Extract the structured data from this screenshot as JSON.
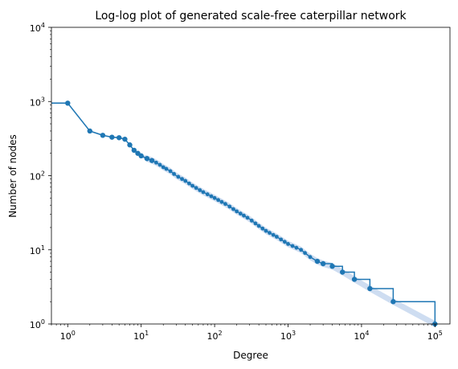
{
  "chart_data": {
    "type": "line",
    "title": "Log-log plot of generated scale-free caterpillar network",
    "xlabel": "Degree",
    "ylabel": "Number of nodes",
    "xscale": "log",
    "yscale": "log",
    "xlim": [
      0.6,
      160000
    ],
    "ylim": [
      1,
      10000
    ],
    "grid": false,
    "x_ticks": [
      {
        "base": "10",
        "exp": "0",
        "value": 1
      },
      {
        "base": "10",
        "exp": "1",
        "value": 10
      },
      {
        "base": "10",
        "exp": "2",
        "value": 100
      },
      {
        "base": "10",
        "exp": "3",
        "value": 1000
      },
      {
        "base": "10",
        "exp": "4",
        "value": 10000
      },
      {
        "base": "10",
        "exp": "5",
        "value": 100000
      }
    ],
    "y_ticks": [
      {
        "base": "10",
        "exp": "0",
        "value": 1
      },
      {
        "base": "10",
        "exp": "1",
        "value": 10
      },
      {
        "base": "10",
        "exp": "2",
        "value": 100
      },
      {
        "base": "10",
        "exp": "3",
        "value": 1000
      },
      {
        "base": "10",
        "exp": "4",
        "value": 10000
      }
    ],
    "line_color": "#1f77b4",
    "band_color": "#aec7e8",
    "series": [
      {
        "x": [
          0.6,
          1,
          2,
          3,
          4,
          5,
          6,
          7,
          8,
          9,
          10,
          12,
          14,
          16,
          18,
          20,
          25,
          30,
          40,
          50,
          70,
          100,
          150,
          200,
          300,
          400,
          500,
          700,
          1000,
          1500,
          2000,
          2500,
          3000,
          4000,
          5500,
          8000,
          13000,
          27000,
          100000
        ],
        "y": [
          950,
          950,
          400,
          350,
          330,
          325,
          310,
          260,
          220,
          200,
          185,
          170,
          160,
          150,
          140,
          130,
          115,
          100,
          85,
          73,
          60,
          50,
          40,
          33,
          26,
          21,
          18,
          15,
          12,
          10,
          8,
          7,
          6.5,
          6,
          5,
          4,
          3,
          2,
          1
        ],
        "markers_x": [
          1,
          2,
          3,
          4,
          5,
          6,
          7,
          8,
          9,
          10,
          12,
          14,
          16,
          18,
          20,
          22,
          25,
          28,
          32,
          36,
          40,
          45,
          50,
          56,
          63,
          70,
          80,
          90,
          100,
          112,
          125,
          140,
          160,
          180,
          200,
          225,
          250,
          280,
          320,
          360,
          400,
          450,
          500,
          560,
          630,
          700,
          800,
          900,
          1000,
          1150,
          1300,
          1500,
          1700,
          2000,
          2500,
          3000,
          4000,
          5500,
          8000,
          13000,
          27000,
          100000
        ]
      }
    ]
  }
}
